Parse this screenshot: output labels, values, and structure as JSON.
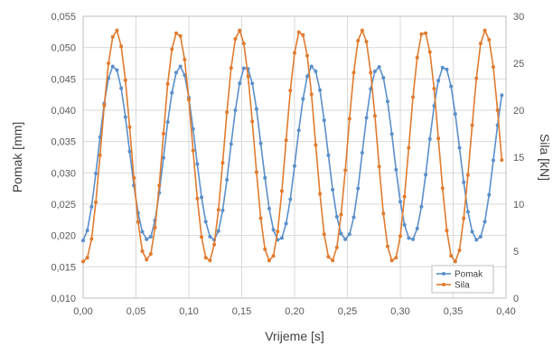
{
  "chart_data": {
    "type": "line",
    "title": "",
    "xlabel": "Vrijeme [s]",
    "ylabel_left": "Pomak [mm]",
    "ylabel_right": "Sila [kN]",
    "xlim": [
      0,
      0.4
    ],
    "ylim_left": [
      0.01,
      0.055
    ],
    "ylim_right": [
      0,
      30
    ],
    "x_ticks": [
      "0,00",
      "0,05",
      "0,10",
      "0,15",
      "0,20",
      "0,25",
      "0,30",
      "0,35",
      "0,40"
    ],
    "y_left_ticks": [
      "0,010",
      "0,015",
      "0,020",
      "0,025",
      "0,030",
      "0,035",
      "0,040",
      "0,045",
      "0,050",
      "0,055"
    ],
    "y_right_ticks": [
      "0",
      "5",
      "10",
      "15",
      "20",
      "25",
      "30"
    ],
    "grid": true,
    "legend_position": "bottom-right",
    "series": [
      {
        "name": "Pomak",
        "axis": "left",
        "color": "#5b8fc9",
        "x": [
          0.0,
          0.004,
          0.008,
          0.012,
          0.016,
          0.02,
          0.024,
          0.028,
          0.032,
          0.036,
          0.04,
          0.044,
          0.048,
          0.052,
          0.056,
          0.06,
          0.064,
          0.068,
          0.072,
          0.076,
          0.08,
          0.084,
          0.088,
          0.092,
          0.096,
          0.1,
          0.104,
          0.108,
          0.112,
          0.116,
          0.12,
          0.124,
          0.128,
          0.132,
          0.136,
          0.14,
          0.144,
          0.148,
          0.152,
          0.156,
          0.16,
          0.164,
          0.168,
          0.172,
          0.176,
          0.18,
          0.184,
          0.188,
          0.192,
          0.196,
          0.2,
          0.204,
          0.208,
          0.212,
          0.216,
          0.22,
          0.224,
          0.228,
          0.232,
          0.236,
          0.24,
          0.244,
          0.248,
          0.252,
          0.256,
          0.26,
          0.264,
          0.268,
          0.272,
          0.276,
          0.28,
          0.284,
          0.288,
          0.292,
          0.296,
          0.3,
          0.304,
          0.308,
          0.312,
          0.316,
          0.32,
          0.324,
          0.328,
          0.332,
          0.336,
          0.34,
          0.344,
          0.348,
          0.352,
          0.356,
          0.36,
          0.364,
          0.368,
          0.372,
          0.376,
          0.38,
          0.384,
          0.388,
          0.392,
          0.396
        ],
        "y": [
          0.0192,
          0.0208,
          0.0246,
          0.0299,
          0.0357,
          0.0411,
          0.0451,
          0.047,
          0.0464,
          0.0435,
          0.0389,
          0.0334,
          0.028,
          0.0236,
          0.0206,
          0.0194,
          0.0198,
          0.0224,
          0.0268,
          0.0324,
          0.0381,
          0.0428,
          0.046,
          0.047,
          0.0456,
          0.042,
          0.037,
          0.0314,
          0.0261,
          0.0222,
          0.0198,
          0.0193,
          0.0207,
          0.024,
          0.0289,
          0.0346,
          0.04,
          0.0443,
          0.0467,
          0.0466,
          0.0443,
          0.0402,
          0.0347,
          0.0292,
          0.0243,
          0.0209,
          0.0193,
          0.0196,
          0.0219,
          0.0258,
          0.0311,
          0.0368,
          0.0418,
          0.0454,
          0.047,
          0.0462,
          0.0432,
          0.0384,
          0.0328,
          0.0273,
          0.023,
          0.0203,
          0.0194,
          0.0202,
          0.0229,
          0.0275,
          0.0332,
          0.0388,
          0.0434,
          0.0462,
          0.0469,
          0.0452,
          0.0414,
          0.0362,
          0.0305,
          0.0254,
          0.0217,
          0.0196,
          0.0194,
          0.0211,
          0.0246,
          0.0297,
          0.0354,
          0.0407,
          0.0447,
          0.0468,
          0.0465,
          0.0438,
          0.0394,
          0.034,
          0.0285,
          0.0238,
          0.0206,
          0.0193,
          0.0198,
          0.0222,
          0.0265,
          0.032,
          0.0376,
          0.0424
        ]
      },
      {
        "name": "Sila",
        "axis": "right",
        "color": "#e07b2f",
        "x": [
          0.0,
          0.004,
          0.008,
          0.012,
          0.016,
          0.02,
          0.024,
          0.028,
          0.032,
          0.036,
          0.04,
          0.044,
          0.048,
          0.052,
          0.056,
          0.06,
          0.064,
          0.068,
          0.072,
          0.076,
          0.08,
          0.084,
          0.088,
          0.092,
          0.096,
          0.1,
          0.104,
          0.108,
          0.112,
          0.116,
          0.12,
          0.124,
          0.128,
          0.132,
          0.136,
          0.14,
          0.144,
          0.148,
          0.152,
          0.156,
          0.16,
          0.164,
          0.168,
          0.172,
          0.176,
          0.18,
          0.184,
          0.188,
          0.192,
          0.196,
          0.2,
          0.204,
          0.208,
          0.212,
          0.216,
          0.22,
          0.224,
          0.228,
          0.232,
          0.236,
          0.24,
          0.244,
          0.248,
          0.252,
          0.256,
          0.26,
          0.264,
          0.268,
          0.272,
          0.276,
          0.28,
          0.284,
          0.288,
          0.292,
          0.296,
          0.3,
          0.304,
          0.308,
          0.312,
          0.316,
          0.32,
          0.324,
          0.328,
          0.332,
          0.336,
          0.34,
          0.344,
          0.348,
          0.352,
          0.356,
          0.36,
          0.364,
          0.368,
          0.372,
          0.376,
          0.38,
          0.384,
          0.388,
          0.392,
          0.396
        ],
        "y": [
          3.9,
          4.3,
          6.3,
          10.2,
          15.2,
          20.5,
          25.0,
          27.8,
          28.5,
          26.8,
          23.2,
          18.2,
          12.8,
          8.1,
          5.0,
          4.1,
          4.7,
          7.5,
          12.0,
          17.5,
          22.8,
          26.5,
          28.2,
          27.9,
          25.4,
          21.1,
          15.7,
          10.6,
          6.5,
          4.3,
          4.0,
          5.7,
          9.4,
          14.4,
          19.8,
          24.5,
          27.6,
          28.5,
          27.1,
          23.6,
          18.8,
          13.4,
          8.5,
          5.2,
          4.0,
          4.5,
          7.1,
          11.4,
          16.8,
          22.1,
          26.1,
          28.3,
          28.0,
          25.8,
          21.7,
          16.3,
          11.1,
          6.8,
          4.4,
          4.0,
          5.4,
          8.9,
          13.6,
          19.1,
          24.0,
          27.4,
          28.5,
          27.3,
          24.0,
          19.4,
          14.0,
          9.0,
          5.5,
          4.0,
          4.3,
          6.6,
          10.8,
          16.0,
          21.4,
          25.6,
          28.1,
          28.2,
          26.2,
          22.3,
          17.0,
          11.7,
          7.2,
          4.5,
          3.9,
          5.1,
          8.5,
          13.1,
          18.4,
          23.4,
          27.1,
          28.5,
          27.5,
          24.6,
          20.0,
          14.7
        ]
      }
    ]
  }
}
